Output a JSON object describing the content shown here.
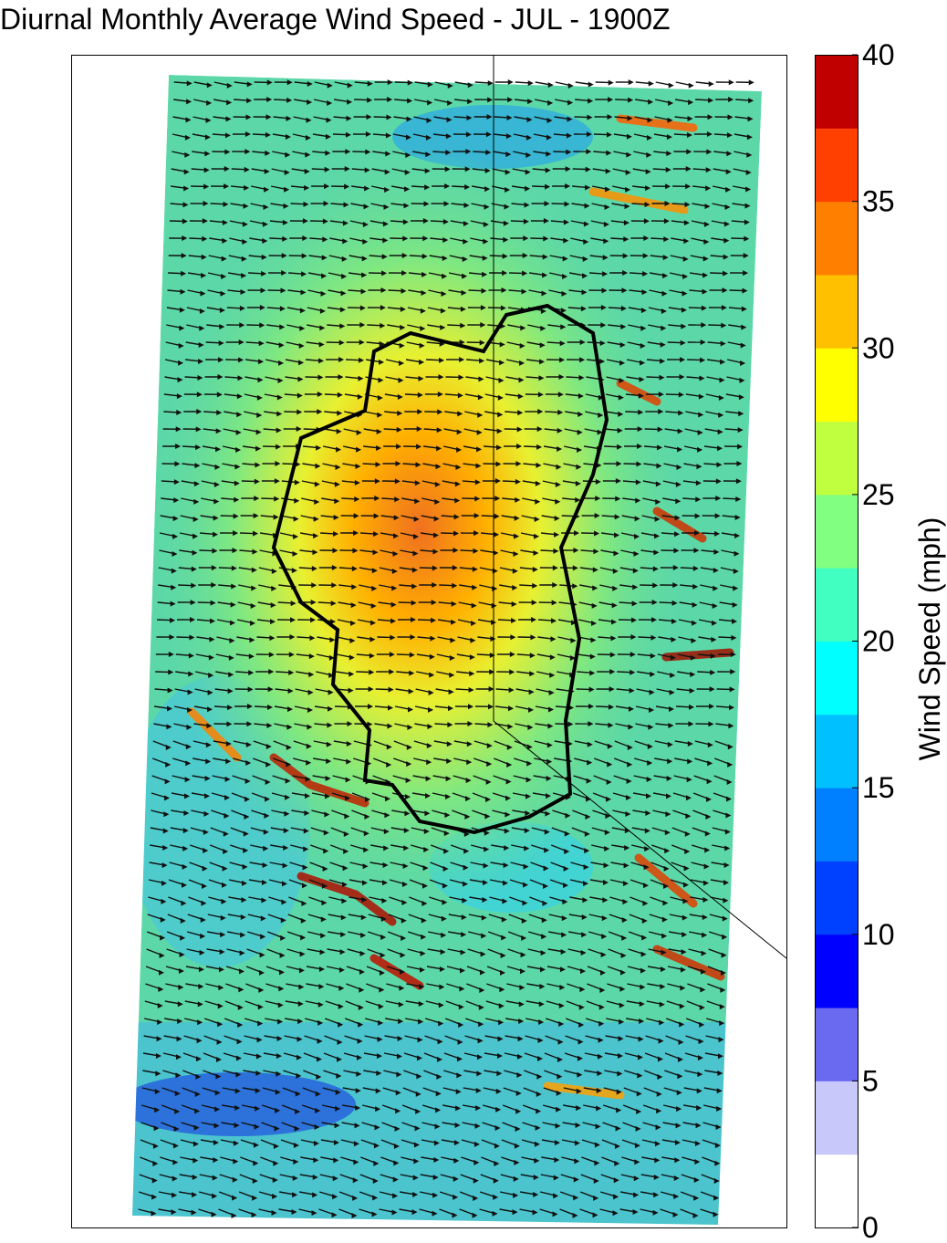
{
  "chart_data": {
    "type": "quiver",
    "title": "Diurnal Monthly Average Wind Speed - JUL - 1900Z",
    "colorbar": {
      "label": "Wind Speed (mph)",
      "lim": [
        0,
        40
      ],
      "ticks": [
        0,
        5,
        10,
        15,
        20,
        25,
        30,
        35,
        40
      ],
      "colors": [
        "#ffffff",
        "#c8c8fa",
        "#6a6af0",
        "#0000ff",
        "#0040ff",
        "#0080ff",
        "#00c0ff",
        "#00ffff",
        "#40ffc0",
        "#80ff80",
        "#c0ff40",
        "#ffff00",
        "#ffc000",
        "#ff8000",
        "#ff4000",
        "#c00000"
      ]
    }
  }
}
